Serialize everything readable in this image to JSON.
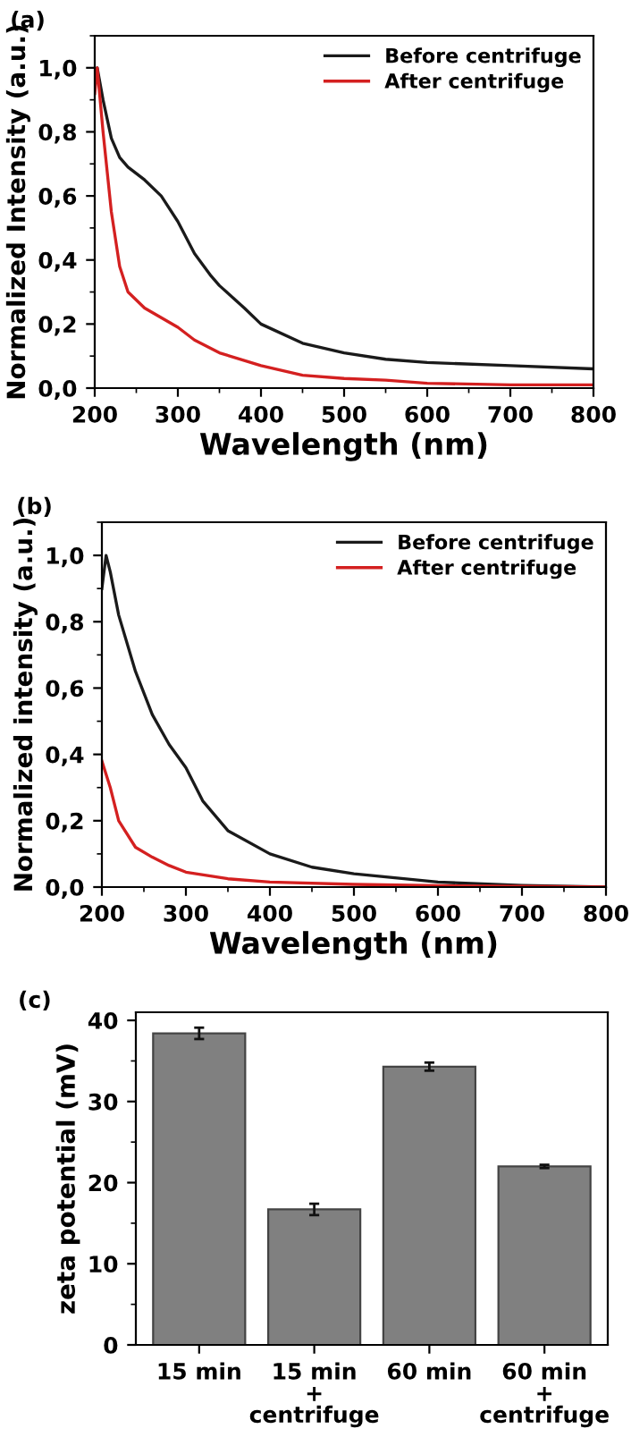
{
  "chart_data": [
    {
      "type": "line",
      "title": "(a)",
      "xlabel": "Wavelength (nm)",
      "ylabel": "Normalized Intensity (a.u.)",
      "series": [
        {
          "name": "Before centrifuge",
          "color": "#1a1a1a",
          "x": [
            200,
            203,
            210,
            220,
            230,
            240,
            260,
            280,
            300,
            320,
            340,
            350,
            380,
            400,
            450,
            500,
            550,
            600,
            700,
            800
          ],
          "values": [
            0.96,
            1.0,
            0.9,
            0.78,
            0.72,
            0.69,
            0.65,
            0.6,
            0.52,
            0.42,
            0.35,
            0.32,
            0.25,
            0.2,
            0.14,
            0.11,
            0.09,
            0.08,
            0.07,
            0.06
          ]
        },
        {
          "name": "After centrifuge",
          "color": "#d42020",
          "x": [
            200,
            203,
            210,
            220,
            230,
            240,
            260,
            280,
            300,
            320,
            350,
            400,
            450,
            500,
            550,
            600,
            700,
            800
          ],
          "values": [
            0.92,
            1.0,
            0.8,
            0.55,
            0.38,
            0.3,
            0.25,
            0.22,
            0.19,
            0.15,
            0.11,
            0.07,
            0.04,
            0.03,
            0.025,
            0.015,
            0.01,
            0.01
          ]
        }
      ],
      "xlim": [
        200,
        800
      ],
      "xticks": [
        200,
        300,
        400,
        500,
        600,
        700,
        800
      ],
      "ylim": [
        0,
        1.1
      ],
      "yticks": [
        {
          "value": 0,
          "label": "0,0"
        },
        {
          "value": 0.2,
          "label": "0,2"
        },
        {
          "value": 0.4,
          "label": "0,4"
        },
        {
          "value": 0.6,
          "label": "0,6"
        },
        {
          "value": 0.8,
          "label": "0,8"
        },
        {
          "value": 1.0,
          "label": "1,0"
        }
      ],
      "legend": "top right",
      "grid": false
    },
    {
      "type": "line",
      "title": "(b)",
      "xlabel": "Wavelength (nm)",
      "ylabel": "Normalized intensity (a.u.)",
      "series": [
        {
          "name": "Before centrifuge",
          "color": "#1a1a1a",
          "x": [
            200,
            205,
            210,
            220,
            240,
            260,
            280,
            300,
            320,
            350,
            400,
            450,
            500,
            600,
            700,
            800
          ],
          "values": [
            0.9,
            1.0,
            0.95,
            0.82,
            0.65,
            0.52,
            0.43,
            0.36,
            0.26,
            0.17,
            0.1,
            0.06,
            0.04,
            0.015,
            0.005,
            0.0
          ]
        },
        {
          "name": "After centrifuge",
          "color": "#d42020",
          "x": [
            200,
            210,
            220,
            240,
            260,
            280,
            300,
            350,
            400,
            500,
            600,
            700,
            800
          ],
          "values": [
            0.38,
            0.3,
            0.2,
            0.12,
            0.09,
            0.065,
            0.045,
            0.025,
            0.015,
            0.008,
            0.004,
            0.002,
            0.0
          ]
        }
      ],
      "xlim": [
        200,
        800
      ],
      "xticks": [
        200,
        300,
        400,
        500,
        600,
        700,
        800
      ],
      "ylim": [
        0,
        1.1
      ],
      "yticks": [
        {
          "value": 0,
          "label": "0,0"
        },
        {
          "value": 0.2,
          "label": "0,2"
        },
        {
          "value": 0.4,
          "label": "0,4"
        },
        {
          "value": 0.6,
          "label": "0,6"
        },
        {
          "value": 0.8,
          "label": "0,8"
        },
        {
          "value": 1.0,
          "label": "1,0"
        }
      ],
      "legend": "top right",
      "grid": false
    },
    {
      "type": "bar",
      "title": "(c)",
      "ylabel": "zeta potential (mV)",
      "categories": [
        "15 min",
        "15 min\n+\ncentrifuge",
        "60 min",
        "60 min\n+\ncentrifuge"
      ],
      "values": [
        38.4,
        16.7,
        34.3,
        22.0
      ],
      "errors": [
        0.7,
        0.7,
        0.5,
        0.2
      ],
      "color": "#808080",
      "ylim": [
        0,
        41
      ],
      "yticks": [
        0,
        10,
        20,
        30,
        40
      ],
      "grid": false
    }
  ]
}
